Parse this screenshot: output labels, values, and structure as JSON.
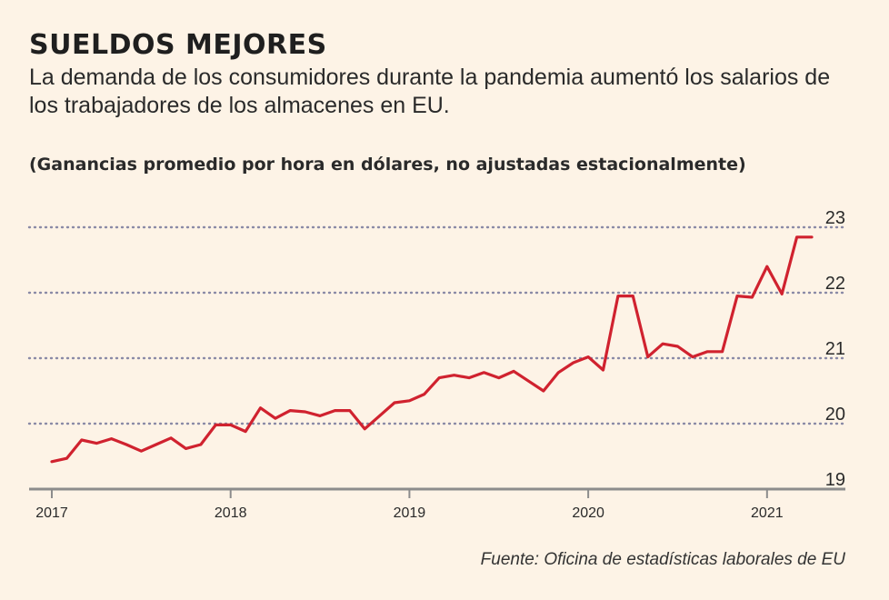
{
  "header": {
    "title": "SUELDOS MEJORES",
    "subtitle": "La demanda de los consumidores durante la pandemia aumentó los salarios de los trabajadores de los almacenes en EU.",
    "units_note": "(Ganancias promedio por hora en dólares, no ajustadas estacionalmente)"
  },
  "footer": {
    "source": "Fuente: Oficina de estadísticas laborales de EU"
  },
  "colors": {
    "background": "#fdf3e6",
    "line": "#d0222f",
    "gridline": "#8a8aa6",
    "axis": "#8c8c8c"
  },
  "chart_data": {
    "type": "line",
    "title": "SUELDOS MEJORES",
    "ylabel": "(Ganancias promedio por hora en dólares, no ajustadas estacionalmente)",
    "xlabel": "",
    "ylim": [
      19,
      23
    ],
    "xlim": [
      "2017-01",
      "2021-04"
    ],
    "yticks": [
      19,
      20,
      21,
      22,
      23
    ],
    "xticks": [
      "2017",
      "2018",
      "2019",
      "2020",
      "2021"
    ],
    "grid": "horizontal dotted",
    "legend": "none",
    "series": [
      {
        "x": [
          "2017-01",
          "2017-02",
          "2017-03",
          "2017-04",
          "2017-05",
          "2017-06",
          "2017-07",
          "2017-08",
          "2017-09",
          "2017-10",
          "2017-11",
          "2017-12",
          "2018-01",
          "2018-02",
          "2018-03",
          "2018-04",
          "2018-05",
          "2018-06",
          "2018-07",
          "2018-08",
          "2018-09",
          "2018-10",
          "2018-11",
          "2018-12",
          "2019-01",
          "2019-02",
          "2019-03",
          "2019-04",
          "2019-05",
          "2019-06",
          "2019-07",
          "2019-08",
          "2019-09",
          "2019-10",
          "2019-11",
          "2019-12",
          "2020-01",
          "2020-02",
          "2020-03",
          "2020-04",
          "2020-05",
          "2020-06",
          "2020-07",
          "2020-08",
          "2020-09",
          "2020-10",
          "2020-11",
          "2020-12",
          "2021-01",
          "2021-02",
          "2021-03",
          "2021-04"
        ],
        "y": [
          19.42,
          19.47,
          19.75,
          19.7,
          19.77,
          19.68,
          19.58,
          19.68,
          19.78,
          19.62,
          19.68,
          19.98,
          19.98,
          19.88,
          20.24,
          20.08,
          20.2,
          20.18,
          20.12,
          20.2,
          20.2,
          19.92,
          20.12,
          20.32,
          20.35,
          20.45,
          20.7,
          20.74,
          20.7,
          20.78,
          20.7,
          20.8,
          20.65,
          20.5,
          20.78,
          20.93,
          21.02,
          20.82,
          21.95,
          21.95,
          21.02,
          21.22,
          21.18,
          21.02,
          21.1,
          21.1,
          21.95,
          21.93,
          22.4,
          21.98,
          22.85,
          22.85
        ]
      }
    ]
  }
}
